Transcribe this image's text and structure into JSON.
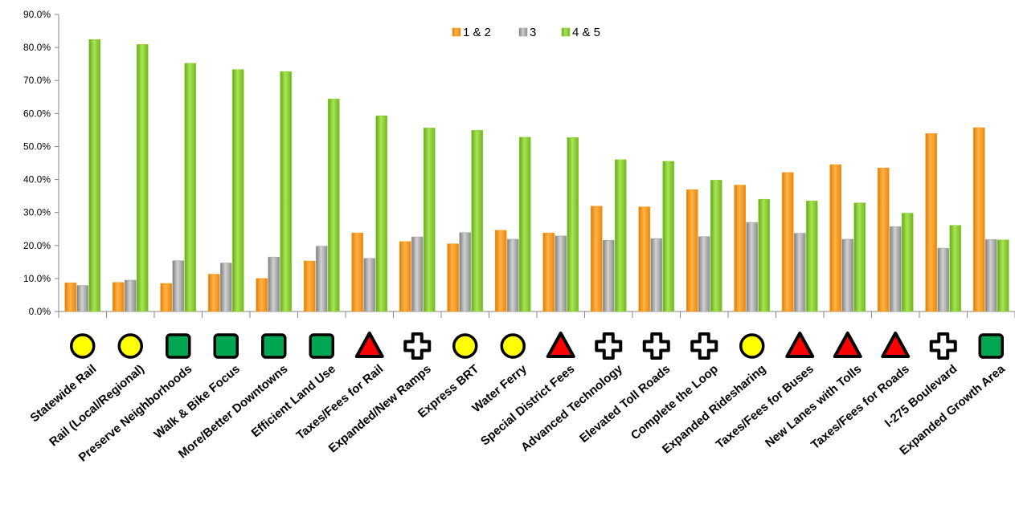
{
  "chart_data": {
    "type": "bar",
    "title": "",
    "xlabel": "",
    "ylabel": "",
    "ylim": [
      0,
      90
    ],
    "y_ticks": [
      "0.0%",
      "10.0%",
      "20.0%",
      "30.0%",
      "40.0%",
      "50.0%",
      "60.0%",
      "70.0%",
      "80.0%",
      "90.0%"
    ],
    "grid": false,
    "legend_position": "top-center",
    "categories": [
      "Statewide Rail",
      "Rail (Local/Regional)",
      "Preserve Neighborhoods",
      "Walk & Bike Focus",
      "More/Better Downtowns",
      "Efficient Land Use",
      "Taxes/Fees for Rail",
      "Expanded/New Ramps",
      "Express BRT",
      "Water Ferry",
      "Special District Fees",
      "Advanced Technology",
      "Elevated Toll Roads",
      "Complete the Loop",
      "Expanded Ridesharing",
      "Taxes/Fees for Buses",
      "New Lanes with Tolls",
      "Taxes/Fees for Roads",
      "I-275 Boulevard",
      "Expanded Growth Area"
    ],
    "category_icons": [
      "yellow-circle",
      "yellow-circle",
      "green-square",
      "green-square",
      "green-square",
      "green-square",
      "red-triangle",
      "white-cross",
      "yellow-circle",
      "yellow-circle",
      "red-triangle",
      "white-cross",
      "white-cross",
      "white-cross",
      "yellow-circle",
      "red-triangle",
      "red-triangle",
      "red-triangle",
      "white-cross",
      "green-square"
    ],
    "series": [
      {
        "name": "1 & 2",
        "color": "#f39a1e",
        "values": [
          8.7,
          8.8,
          8.5,
          11.3,
          10.0,
          15.3,
          23.8,
          21.2,
          20.5,
          24.6,
          23.8,
          31.9,
          31.7,
          36.9,
          38.3,
          42.1,
          44.5,
          43.5,
          53.9,
          55.7
        ]
      },
      {
        "name": "3",
        "color": "#a4a4a4",
        "values": [
          7.9,
          9.5,
          15.4,
          14.7,
          16.5,
          19.8,
          16.1,
          22.6,
          23.9,
          21.9,
          22.9,
          21.6,
          22.1,
          22.7,
          27.0,
          23.7,
          21.9,
          25.7,
          19.2,
          21.8
        ]
      },
      {
        "name": "4 & 5",
        "color": "#8ed136",
        "values": [
          82.4,
          80.9,
          75.2,
          73.3,
          72.7,
          64.4,
          59.3,
          55.6,
          54.9,
          52.8,
          52.7,
          46.0,
          45.5,
          39.8,
          34.0,
          33.5,
          32.9,
          29.8,
          26.1,
          21.7
        ]
      }
    ]
  }
}
